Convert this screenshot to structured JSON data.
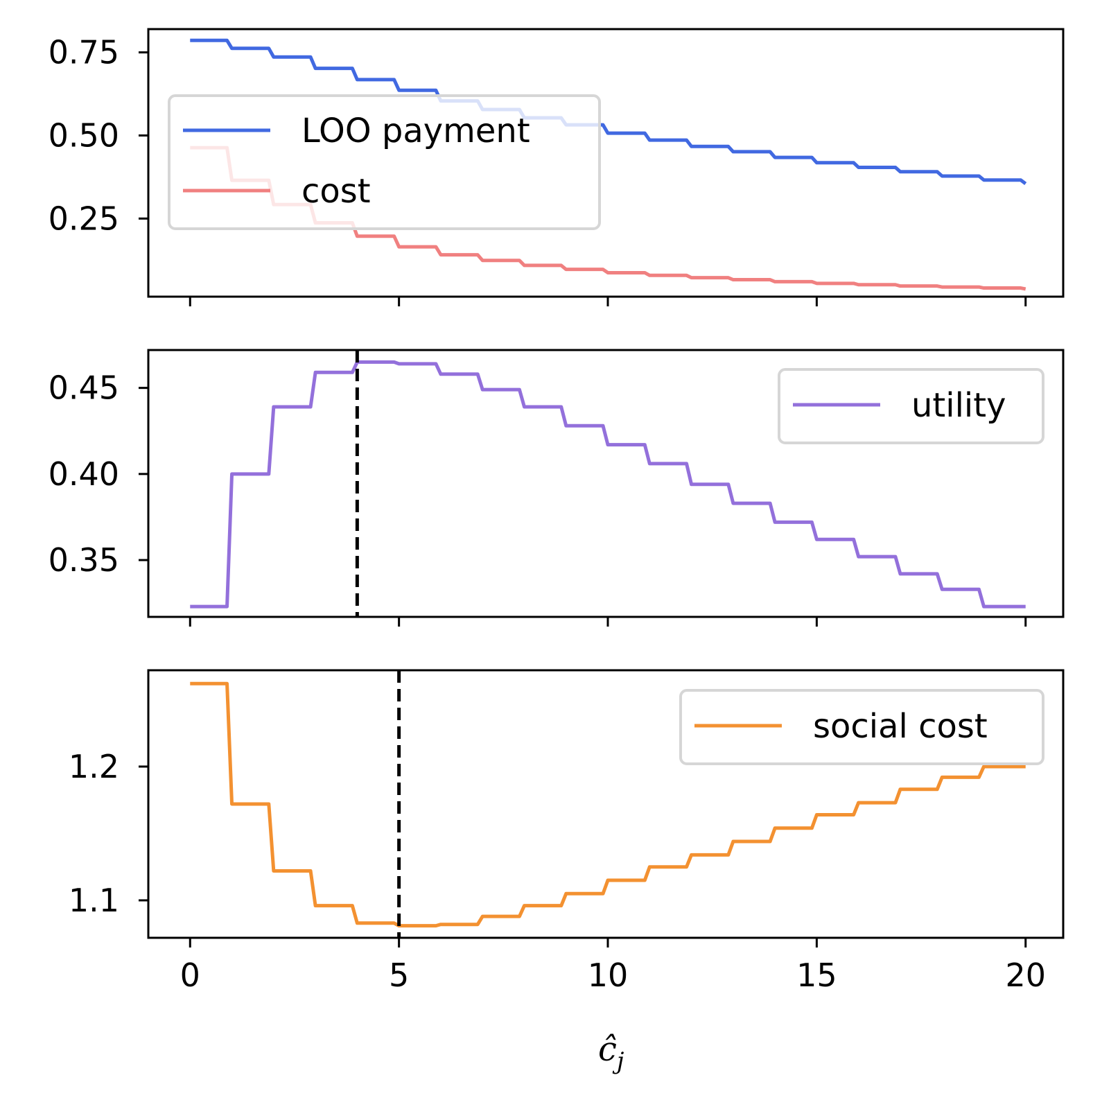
{
  "chart_data": [
    {
      "type": "line",
      "step": true,
      "xlim": [
        -1,
        20.9
      ],
      "ylim": [
        0.015,
        0.82
      ],
      "xticks": [
        0,
        5,
        10,
        15,
        20
      ],
      "xtick_labels_visible": false,
      "yticks": [
        0.25,
        0.5,
        0.75
      ],
      "ytick_labels": [
        "0.25",
        "0.50",
        "0.75"
      ],
      "legend_position": "upper-left",
      "series": [
        {
          "name": "LOO payment",
          "color": "#4169e1",
          "x": [
            0,
            1,
            2,
            3,
            4,
            5,
            6,
            7,
            8,
            9,
            10,
            11,
            12,
            13,
            14,
            15,
            16,
            17,
            18,
            19,
            20
          ],
          "y": [
            0.786,
            0.762,
            0.736,
            0.702,
            0.668,
            0.636,
            0.604,
            0.578,
            0.553,
            0.532,
            0.507,
            0.486,
            0.467,
            0.451,
            0.434,
            0.418,
            0.404,
            0.391,
            0.378,
            0.366,
            0.355
          ]
        },
        {
          "name": "cost",
          "color": "#f08080",
          "x": [
            0,
            1,
            2,
            3,
            4,
            5,
            6,
            7,
            8,
            9,
            10,
            11,
            12,
            13,
            14,
            15,
            16,
            17,
            18,
            19,
            20
          ],
          "y": [
            0.463,
            0.365,
            0.292,
            0.237,
            0.197,
            0.165,
            0.141,
            0.124,
            0.109,
            0.097,
            0.087,
            0.079,
            0.072,
            0.066,
            0.06,
            0.055,
            0.051,
            0.047,
            0.044,
            0.041,
            0.038
          ]
        }
      ]
    },
    {
      "type": "line",
      "step": true,
      "xlim": [
        -1,
        20.9
      ],
      "ylim": [
        0.317,
        0.472
      ],
      "xticks": [
        0,
        5,
        10,
        15,
        20
      ],
      "xtick_labels_visible": false,
      "yticks": [
        0.35,
        0.4,
        0.45
      ],
      "ytick_labels": [
        "0.35",
        "0.40",
        "0.45"
      ],
      "legend_position": "upper-right",
      "vline": 4,
      "series": [
        {
          "name": "utility",
          "color": "#9370db",
          "x": [
            0,
            1,
            2,
            3,
            4,
            5,
            6,
            7,
            8,
            9,
            10,
            11,
            12,
            13,
            14,
            15,
            16,
            17,
            18,
            19,
            20
          ],
          "y": [
            0.323,
            0.4,
            0.439,
            0.459,
            0.465,
            0.464,
            0.458,
            0.449,
            0.439,
            0.428,
            0.417,
            0.406,
            0.394,
            0.383,
            0.372,
            0.362,
            0.352,
            0.342,
            0.333,
            0.323,
            0.323
          ]
        }
      ]
    },
    {
      "type": "line",
      "step": true,
      "xlim": [
        -1,
        20.9
      ],
      "ylim": [
        1.072,
        1.272
      ],
      "xticks": [
        0,
        5,
        10,
        15,
        20
      ],
      "xtick_labels": [
        "0",
        "5",
        "10",
        "15",
        "20"
      ],
      "yticks": [
        1.1,
        1.2
      ],
      "ytick_labels": [
        "1.1",
        "1.2"
      ],
      "xlabel": "ĉ",
      "xlabel_subscript": "j",
      "legend_position": "upper-right",
      "vline": 5,
      "series": [
        {
          "name": "social cost",
          "color": "#f39131",
          "x": [
            0,
            1,
            2,
            3,
            4,
            5,
            6,
            7,
            8,
            9,
            10,
            11,
            12,
            13,
            14,
            15,
            16,
            17,
            18,
            19,
            20
          ],
          "y": [
            1.262,
            1.172,
            1.122,
            1.096,
            1.083,
            1.081,
            1.082,
            1.088,
            1.096,
            1.105,
            1.115,
            1.125,
            1.134,
            1.144,
            1.154,
            1.164,
            1.173,
            1.183,
            1.192,
            1.2,
            1.2
          ]
        }
      ]
    }
  ]
}
